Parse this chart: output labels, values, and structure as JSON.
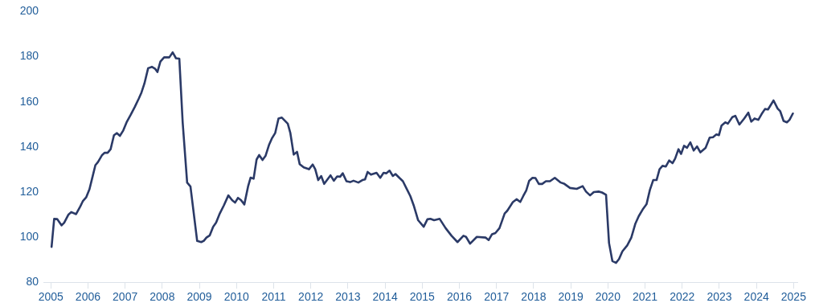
{
  "chart_data": {
    "type": "line",
    "x": [
      2005.02,
      2005.09,
      2005.17,
      2005.29,
      2005.36,
      2005.47,
      2005.55,
      2005.68,
      2005.79,
      2005.86,
      2005.95,
      2006.04,
      2006.11,
      2006.2,
      2006.27,
      2006.38,
      2006.45,
      2006.53,
      2006.61,
      2006.7,
      2006.78,
      2006.86,
      2006.95,
      2007.04,
      2007.15,
      2007.26,
      2007.37,
      2007.44,
      2007.52,
      2007.62,
      2007.72,
      2007.81,
      2007.87,
      2007.95,
      2008.05,
      2008.19,
      2008.28,
      2008.37,
      2008.46,
      2008.55,
      2008.67,
      2008.76,
      2008.94,
      2009.05,
      2009.12,
      2009.19,
      2009.28,
      2009.37,
      2009.45,
      2009.55,
      2009.66,
      2009.78,
      2009.88,
      2009.96,
      2010.04,
      2010.12,
      2010.21,
      2010.31,
      2010.38,
      2010.46,
      2010.54,
      2010.61,
      2010.7,
      2010.78,
      2010.88,
      2010.95,
      2011.04,
      2011.13,
      2011.22,
      2011.38,
      2011.45,
      2011.54,
      2011.63,
      2011.7,
      2011.81,
      2011.95,
      2012.05,
      2012.12,
      2012.2,
      2012.28,
      2012.36,
      2012.53,
      2012.62,
      2012.71,
      2012.79,
      2012.86,
      2012.96,
      2013.06,
      2013.15,
      2013.28,
      2013.39,
      2013.46,
      2013.53,
      2013.62,
      2013.77,
      2013.87,
      2013.96,
      2014.03,
      2014.12,
      2014.21,
      2014.28,
      2014.39,
      2014.48,
      2014.57,
      2014.68,
      2014.77,
      2014.89,
      2015.04,
      2015.14,
      2015.22,
      2015.32,
      2015.47,
      2015.63,
      2015.79,
      2015.95,
      2016.11,
      2016.18,
      2016.29,
      2016.47,
      2016.71,
      2016.79,
      2016.88,
      2016.97,
      2017.08,
      2017.22,
      2017.29,
      2017.44,
      2017.54,
      2017.64,
      2017.72,
      2017.8,
      2017.88,
      2017.97,
      2018.05,
      2018.14,
      2018.23,
      2018.33,
      2018.44,
      2018.57,
      2018.73,
      2018.83,
      2018.98,
      2019.16,
      2019.32,
      2019.41,
      2019.52,
      2019.62,
      2019.75,
      2019.84,
      2019.95,
      2020.03,
      2020.12,
      2020.22,
      2020.3,
      2020.39,
      2020.52,
      2020.63,
      2020.74,
      2020.83,
      2020.95,
      2021.04,
      2021.13,
      2021.22,
      2021.31,
      2021.39,
      2021.47,
      2021.56,
      2021.65,
      2021.74,
      2021.81,
      2021.9,
      2021.97,
      2022.05,
      2022.13,
      2022.22,
      2022.31,
      2022.4,
      2022.49,
      2022.63,
      2022.74,
      2022.83,
      2022.92,
      2022.99,
      2023.06,
      2023.16,
      2023.23,
      2023.35,
      2023.43,
      2023.54,
      2023.67,
      2023.78,
      2023.86,
      2023.95,
      2024.05,
      2024.14,
      2024.23,
      2024.31,
      2024.46,
      2024.57,
      2024.64,
      2024.73,
      2024.82,
      2024.89,
      2024.98
    ],
    "series": [
      {
        "color": "#2b3a67",
        "values": [
          95.7,
          108.1,
          108,
          105.2,
          106.4,
          109.9,
          111.1,
          110.2,
          113.5,
          115.9,
          117.6,
          121.2,
          125.9,
          131.9,
          133.3,
          136.4,
          137.4,
          137.4,
          139,
          145.2,
          146.1,
          144.9,
          147.3,
          150.9,
          154.2,
          157.7,
          161.5,
          164.1,
          168.1,
          174.9,
          175.5,
          174.6,
          173.2,
          177.8,
          179.7,
          179.7,
          181.9,
          179.3,
          179.1,
          150.9,
          124.2,
          122.4,
          98.3,
          97.8,
          98.4,
          99.8,
          100.8,
          104.6,
          106.4,
          110.5,
          114.1,
          118.5,
          116.4,
          115.3,
          117.4,
          116.4,
          114.5,
          122.4,
          126.4,
          125.9,
          134.4,
          136.4,
          134.2,
          136,
          141.1,
          143.7,
          146.1,
          152.6,
          153,
          150.3,
          146.1,
          136.6,
          137.8,
          132.4,
          130.9,
          130.1,
          132.2,
          130.1,
          125.3,
          127.1,
          123.6,
          127.4,
          125,
          126.9,
          126.8,
          128.3,
          124.8,
          124.4,
          125,
          124.2,
          125.3,
          125.6,
          128.9,
          127.7,
          128.5,
          126.3,
          128.5,
          128.3,
          129.5,
          127.1,
          128,
          126.2,
          124.8,
          121.8,
          118.2,
          114.1,
          107.5,
          104.6,
          107.9,
          108.1,
          107.5,
          108.1,
          104,
          100.6,
          97.8,
          100.6,
          100.1,
          97.1,
          100.1,
          99.8,
          98.7,
          101.3,
          101.8,
          104,
          110.5,
          111.7,
          115.5,
          116.8,
          115.6,
          118.2,
          120.6,
          125,
          126.3,
          126.2,
          123.6,
          123.6,
          124.8,
          124.8,
          126.3,
          124.2,
          123.6,
          121.8,
          121.4,
          122.6,
          120.2,
          118.5,
          120,
          120.2,
          119.8,
          118.8,
          97.4,
          89.4,
          88.6,
          90.3,
          93.7,
          96.3,
          99.8,
          106,
          109.3,
          112.6,
          114.6,
          120.9,
          125.3,
          125.3,
          130.1,
          131.6,
          131.3,
          134,
          132.8,
          134.8,
          139,
          136.9,
          140.5,
          139.6,
          142,
          138.4,
          140.2,
          137.6,
          139.6,
          144.1,
          144.3,
          145.5,
          145.2,
          149.5,
          150.9,
          150.3,
          153.2,
          153.8,
          149.9,
          152.6,
          155.2,
          151.2,
          152.6,
          152,
          154.6,
          156.8,
          156.6,
          160.6,
          157,
          155.8,
          151.5,
          150.9,
          152,
          154.8
        ]
      }
    ],
    "xlim": [
      2004.8,
      2025.1
    ],
    "xticks": [
      2005,
      2006,
      2007,
      2008,
      2009,
      2010,
      2011,
      2012,
      2013,
      2014,
      2015,
      2016,
      2017,
      2018,
      2019,
      2020,
      2021,
      2022,
      2023,
      2024,
      2025
    ],
    "ylim": [
      80,
      200
    ],
    "yticks": [
      80,
      100,
      120,
      140,
      160,
      180,
      200
    ],
    "grid": false,
    "legend": false,
    "marker": "none",
    "line_style": "solid"
  }
}
